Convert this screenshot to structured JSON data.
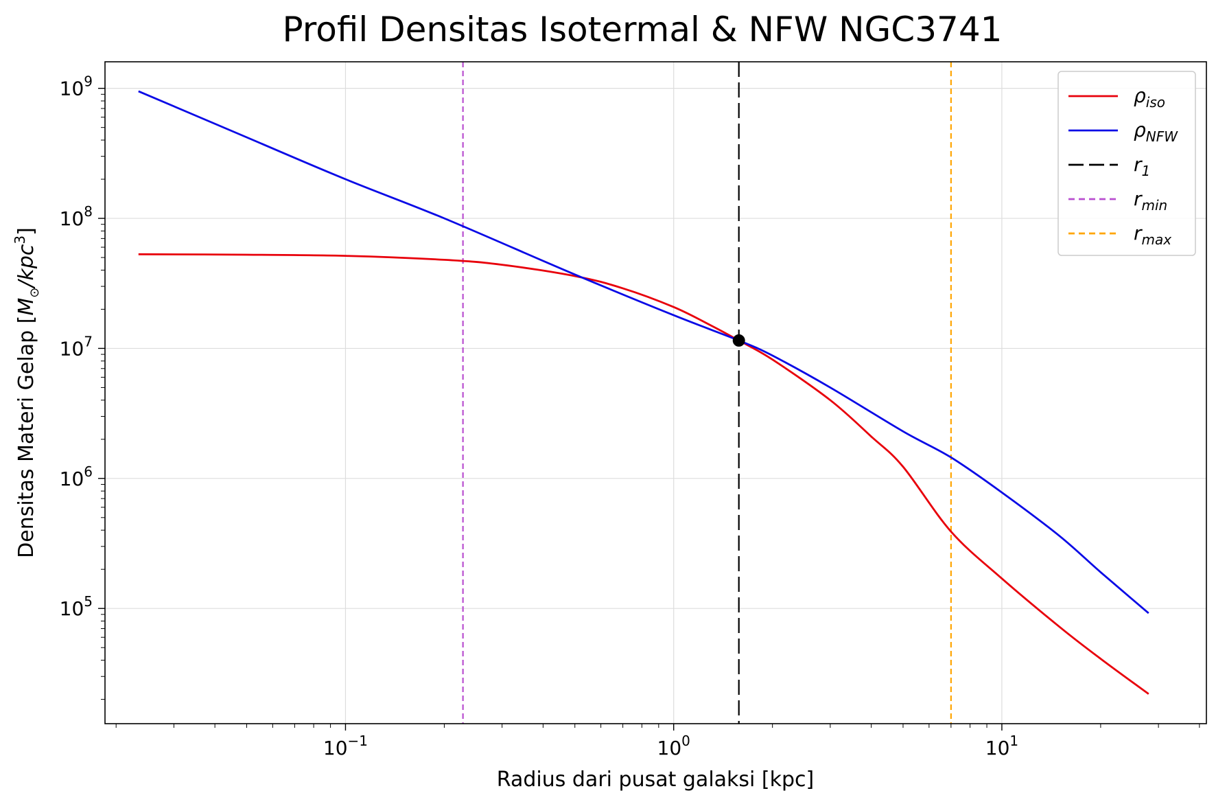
{
  "chart_data": {
    "type": "line",
    "title": "Profil Densitas Isotermal & NFW NGC3741",
    "xlabel": "Radius dari pusat galaksi [kpc]",
    "ylabel_main": "Densitas Materi Gelap [",
    "ylabel_math": "M",
    "ylabel_sun": "⊙",
    "ylabel_div": "/kpc",
    "ylabel_pow": "3",
    "ylabel_close": "]",
    "xscale": "log",
    "yscale": "log",
    "xlim": [
      0.0185,
      42
    ],
    "ylim": [
      13000,
      1600000000
    ],
    "grid": true,
    "legend_position": "top-right",
    "x_ticks": [
      {
        "value": 0.1,
        "base": "10",
        "exp": "−1"
      },
      {
        "value": 1,
        "base": "10",
        "exp": "0"
      },
      {
        "value": 10,
        "base": "10",
        "exp": "1"
      }
    ],
    "y_ticks": [
      {
        "value": 100000,
        "base": "10",
        "exp": "5"
      },
      {
        "value": 1000000,
        "base": "10",
        "exp": "6"
      },
      {
        "value": 10000000,
        "base": "10",
        "exp": "7"
      },
      {
        "value": 100000000,
        "base": "10",
        "exp": "8"
      },
      {
        "value": 1000000000,
        "base": "10",
        "exp": "9"
      }
    ],
    "series": [
      {
        "name": "ρiso",
        "legend_main": "ρ",
        "legend_sub": "iso",
        "color": "#e8000b",
        "x": [
          0.0234,
          0.05,
          0.1,
          0.2,
          0.3,
          0.5,
          0.7,
          1.0,
          1.3,
          1.58,
          2.0,
          3.0,
          4.0,
          5.0,
          7.0,
          10.0,
          15.0,
          20.0,
          28.0
        ],
        "y": [
          53000000,
          52500000,
          51500000,
          48000000,
          44000000,
          36000000,
          29000000,
          20800000,
          15000000,
          11500000,
          8200000,
          4000000,
          2100000,
          1230000,
          390000,
          170000,
          72000,
          41000,
          22000
        ]
      },
      {
        "name": "ρNFW",
        "legend_main": "ρ",
        "legend_sub": "NFW",
        "color": "#0a0ae6",
        "x": [
          0.0234,
          0.05,
          0.1,
          0.2,
          0.5,
          1.0,
          1.58,
          2.0,
          3.0,
          5.0,
          7.0,
          10.0,
          15.0,
          20.0,
          28.0
        ],
        "y": [
          950000000,
          420000000,
          200000000,
          100000000,
          37000000,
          18000000,
          11500000,
          8800000,
          5000000,
          2300000,
          1450000,
          780000,
          360000,
          190000,
          92000
        ]
      }
    ],
    "vlines": [
      {
        "name": "r1",
        "legend_main": "r",
        "legend_sub": "1",
        "x": 1.58,
        "color": "#000000",
        "dash": "22,8"
      },
      {
        "name": "rmin",
        "legend_main": "r",
        "legend_sub": "min",
        "x": 0.228,
        "color": "#b94fd0",
        "dash": "8,5"
      },
      {
        "name": "rmax",
        "legend_main": "r",
        "legend_sub": "max",
        "x": 7.0,
        "color": "#ffa500",
        "dash": "8,5"
      }
    ],
    "marker": {
      "x": 1.58,
      "y": 11500000,
      "color": "#000000"
    }
  }
}
